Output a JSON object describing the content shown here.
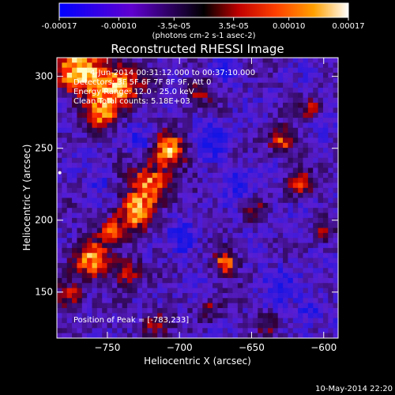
{
  "chart_data": {
    "type": "heatmap",
    "title": "Reconstructed RHESSI Image",
    "xlabel": "Heliocentric X (arcsec)",
    "ylabel": "Heliocentric Y (arcsec)",
    "xlim": [
      -785,
      -590
    ],
    "ylim": [
      118,
      313
    ],
    "xticks": [
      -750,
      -700,
      -650,
      -600
    ],
    "yticks": [
      150,
      200,
      250,
      300
    ],
    "colorbar": {
      "ticks": [
        "-0.00017",
        "-0.00010",
        "-3.5e-05",
        "3.5e-05",
        "0.00010",
        "0.00017"
      ],
      "tick_values": [
        -0.00017,
        -0.0001,
        -3.5e-05,
        3.5e-05,
        0.0001,
        0.00017
      ],
      "range": [
        -0.00017,
        0.00017
      ],
      "units": "(photons cm-2 s-1 asec-2)",
      "colormap": [
        "#0000ff",
        "#5a00d0",
        "#000000",
        "#8a0000",
        "#ff2000",
        "#ff9000",
        "#ffff20",
        "#ffffff"
      ]
    },
    "annotations": {
      "time_range": "4-Jun-2014 00:31:12.000 to 00:37:10.000",
      "detectors": "Detectors: 3F 5F 6F 7F 8F 9F, Att 0",
      "energy_range": "Energy Range: 12.0 - 25.0 keV",
      "method_counts": "Clean    Total counts: 5.18E+03",
      "peak": "Position of Peak = [-783,233]"
    },
    "peaks": [
      {
        "x": -783,
        "y": 233,
        "value": 0.00017
      }
    ]
  },
  "footer": {
    "timestamp": "10-May-2014 22:20"
  }
}
